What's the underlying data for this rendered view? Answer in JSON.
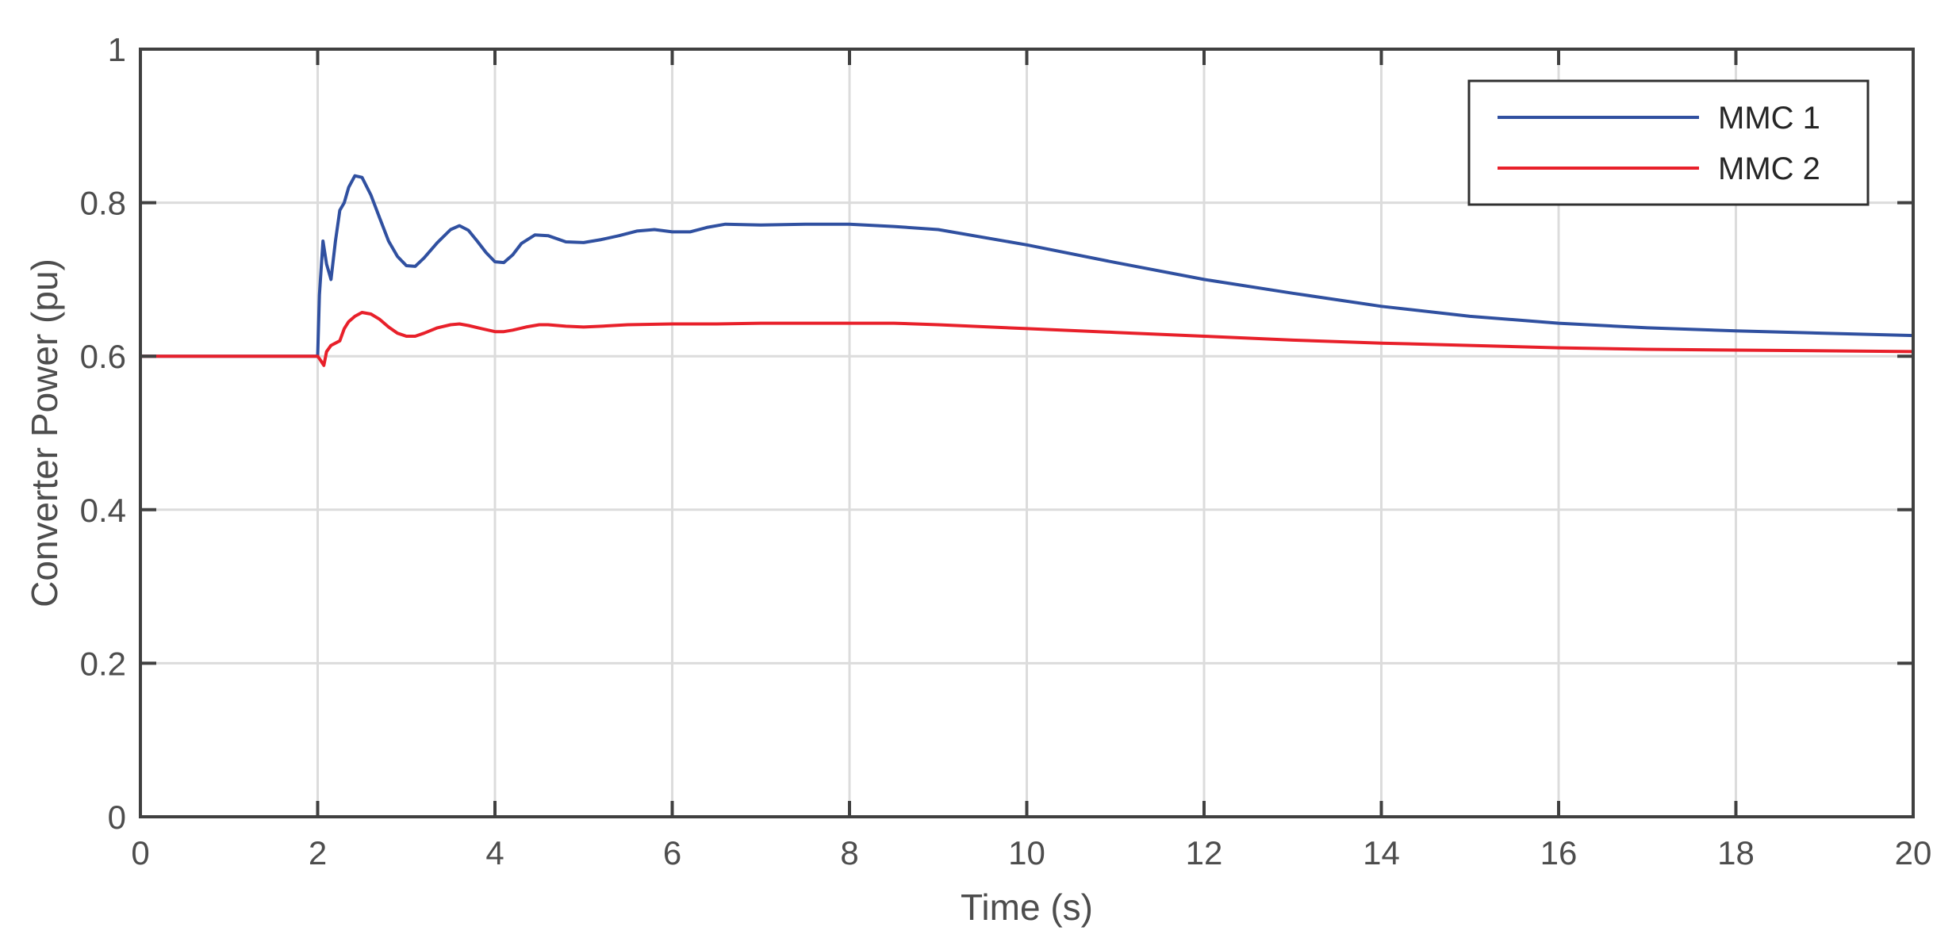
{
  "chart_data": {
    "type": "line",
    "title": "",
    "xlabel": "Time (s)",
    "ylabel": "Converter Power (pu)",
    "xlim": [
      0,
      20
    ],
    "ylim": [
      0,
      1
    ],
    "xticks": [
      0,
      2,
      4,
      6,
      8,
      10,
      12,
      14,
      16,
      18,
      20
    ],
    "yticks": [
      0,
      0.2,
      0.4,
      0.6,
      0.8,
      1
    ],
    "xtick_labels": [
      "0",
      "2",
      "4",
      "6",
      "8",
      "10",
      "12",
      "14",
      "16",
      "18",
      "20"
    ],
    "ytick_labels": [
      "0",
      "0.2",
      "0.4",
      "0.6",
      "0.8",
      "1"
    ],
    "grid": true,
    "legend_position": "top-right",
    "series": [
      {
        "name": "MMC 1",
        "color": "#3050a0",
        "x": [
          0,
          1,
          2.0,
          2.02,
          2.06,
          2.1,
          2.15,
          2.2,
          2.25,
          2.3,
          2.35,
          2.42,
          2.5,
          2.6,
          2.7,
          2.8,
          2.9,
          3.0,
          3.1,
          3.2,
          3.35,
          3.5,
          3.6,
          3.7,
          3.8,
          3.9,
          4.0,
          4.1,
          4.2,
          4.3,
          4.45,
          4.6,
          4.8,
          5.0,
          5.2,
          5.4,
          5.6,
          5.8,
          6.0,
          6.2,
          6.4,
          6.6,
          7.0,
          7.5,
          8.0,
          8.5,
          9.0,
          10.0,
          11.0,
          12.0,
          13.0,
          14.0,
          15.0,
          16.0,
          17.0,
          18.0,
          19.0,
          20.0
        ],
        "y": [
          0.6,
          0.6,
          0.6,
          0.68,
          0.75,
          0.72,
          0.7,
          0.75,
          0.79,
          0.8,
          0.82,
          0.835,
          0.833,
          0.81,
          0.78,
          0.75,
          0.73,
          0.718,
          0.717,
          0.728,
          0.748,
          0.765,
          0.77,
          0.764,
          0.75,
          0.735,
          0.723,
          0.722,
          0.732,
          0.747,
          0.758,
          0.757,
          0.749,
          0.748,
          0.752,
          0.757,
          0.763,
          0.765,
          0.762,
          0.762,
          0.768,
          0.772,
          0.771,
          0.772,
          0.772,
          0.769,
          0.765,
          0.745,
          0.722,
          0.7,
          0.682,
          0.665,
          0.652,
          0.643,
          0.637,
          0.633,
          0.63,
          0.627
        ]
      },
      {
        "name": "MMC 2",
        "color": "#e8202a",
        "x": [
          0,
          1,
          2.0,
          2.03,
          2.07,
          2.1,
          2.15,
          2.2,
          2.25,
          2.3,
          2.35,
          2.42,
          2.5,
          2.6,
          2.7,
          2.8,
          2.9,
          3.0,
          3.1,
          3.2,
          3.35,
          3.5,
          3.6,
          3.7,
          3.85,
          4.0,
          4.1,
          4.2,
          4.35,
          4.5,
          4.6,
          4.8,
          5.0,
          5.2,
          5.5,
          6.0,
          6.5,
          7.0,
          7.5,
          8.0,
          8.5,
          9.0,
          10.0,
          11.0,
          12.0,
          13.0,
          14.0,
          15.0,
          16.0,
          17.0,
          18.0,
          19.0,
          20.0
        ],
        "y": [
          0.6,
          0.6,
          0.6,
          0.595,
          0.588,
          0.606,
          0.614,
          0.617,
          0.62,
          0.636,
          0.645,
          0.652,
          0.657,
          0.655,
          0.648,
          0.638,
          0.63,
          0.626,
          0.626,
          0.63,
          0.637,
          0.641,
          0.642,
          0.64,
          0.636,
          0.632,
          0.632,
          0.634,
          0.638,
          0.641,
          0.641,
          0.639,
          0.638,
          0.639,
          0.641,
          0.642,
          0.642,
          0.643,
          0.643,
          0.643,
          0.643,
          0.641,
          0.636,
          0.631,
          0.626,
          0.621,
          0.617,
          0.614,
          0.611,
          0.609,
          0.608,
          0.607,
          0.606
        ]
      }
    ]
  }
}
